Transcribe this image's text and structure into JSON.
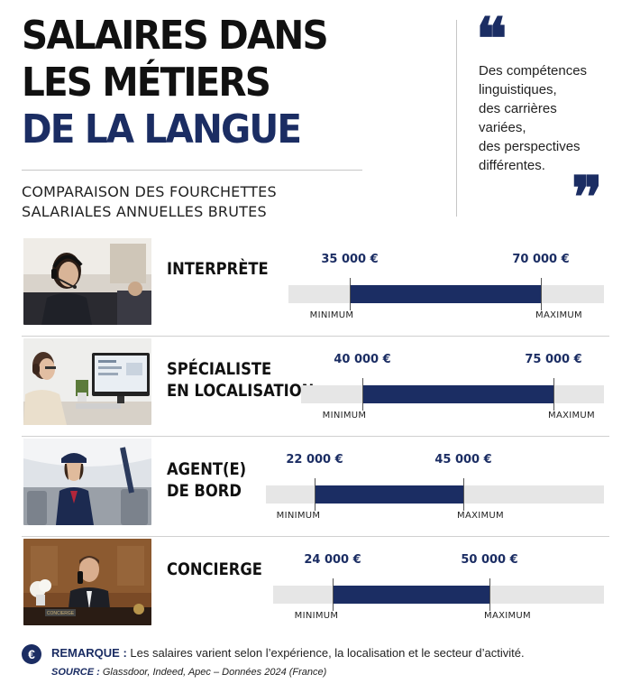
{
  "title": {
    "line1": "SALAIRES DANS",
    "line2": "LES MÉTIERS",
    "line3": "DE LA LANGUE"
  },
  "subtitle": {
    "line1": "COMPARAISON DES FOURCHETTES",
    "line2": "SALARIALES ANNUELLES BRUTES"
  },
  "quote": {
    "open": "❝",
    "close": "❞",
    "lines": [
      "Des compétences",
      "linguistiques,",
      "des carrières",
      "variées,",
      "des perspectives",
      "différentes."
    ]
  },
  "colors": {
    "accent": "#1b2d63",
    "track": "#e6e6e6"
  },
  "rows": [
    {
      "job_lines": [
        "INTERPRÈTE"
      ],
      "min_value": "35 000 €",
      "max_value": "70 000 €",
      "min_label": "MINIMUM",
      "max_label": "MAXIMUM",
      "min": 35000,
      "max": 70000,
      "photo": "interpreter-headset-photo"
    },
    {
      "job_lines": [
        "SPÉCIALISTE",
        "EN LOCALISATION"
      ],
      "min_value": "40 000 €",
      "max_value": "75 000 €",
      "min_label": "MINIMUM",
      "max_label": "MAXIMUM",
      "min": 40000,
      "max": 75000,
      "photo": "localization-specialist-photo"
    },
    {
      "job_lines": [
        "AGENT(E)",
        "DE BORD"
      ],
      "min_value": "22 000 €",
      "max_value": "45 000 €",
      "min_label": "MINIMUM",
      "max_label": "MAXIMUM",
      "min": 22000,
      "max": 45000,
      "photo": "flight-attendant-photo"
    },
    {
      "job_lines": [
        "CONCIERGE"
      ],
      "min_value": "24 000 €",
      "max_value": "50 000 €",
      "min_label": "MINIMUM",
      "max_label": "MAXIMUM",
      "min": 24000,
      "max": 50000,
      "photo": "concierge-photo",
      "desk_sign": "CONCIERGE"
    }
  ],
  "footer": {
    "euro_icon": "€",
    "remark_key": "REMARQUE :",
    "remark_text": " Les salaires varient selon l’expérience, la localisation et le secteur d’activité.",
    "source_key": "SOURCE :",
    "source_text": " Glassdoor, Indeed, Apec – Données 2024 (France)"
  }
}
